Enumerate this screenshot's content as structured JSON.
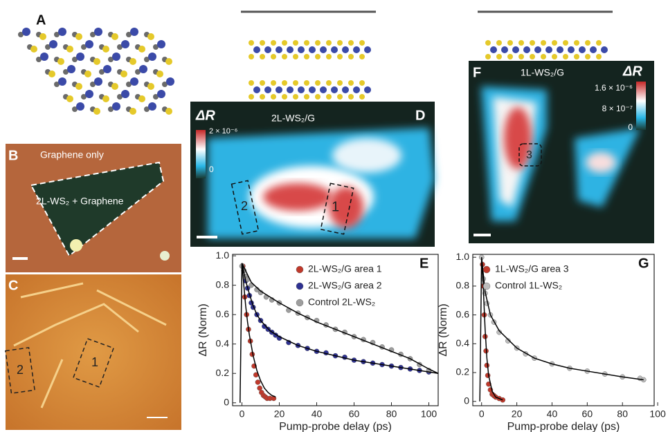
{
  "panels": {
    "letters": [
      "A",
      "B",
      "C",
      "D",
      "E",
      "F",
      "G"
    ],
    "b": {
      "top_label": "Graphene only",
      "region_label": "2L-WS₂ + Graphene"
    },
    "c": {
      "area_labels": [
        "1",
        "2"
      ]
    },
    "d": {
      "title": "2L-WS₂/G",
      "colorbar_title": "ΔR",
      "colorbar_ticks": [
        "2 × 10⁻⁶",
        "0"
      ],
      "area_labels": [
        "1",
        "2"
      ]
    },
    "f": {
      "title": "1L-WS₂/G",
      "colorbar_title": "ΔR",
      "colorbar_ticks": [
        "1.6 × 10⁻⁶",
        "8 × 10⁻⁷",
        "0"
      ],
      "area_labels": [
        "3"
      ]
    }
  },
  "chart_data": [
    {
      "type": "scatter",
      "xlabel": "Pump-probe delay (ps)",
      "ylabel": "ΔR (Norm)",
      "legend": "upper right",
      "xlim": [
        -5,
        105
      ],
      "xticks": [
        0,
        20,
        40,
        60,
        80,
        100
      ],
      "ylim": [
        -0.02,
        1.01
      ],
      "yticks": [
        0,
        0.2,
        0.4,
        0.6,
        0.8,
        {
          "value": 1,
          "label": "1.0"
        }
      ],
      "series": [
        {
          "name": "2L-WS₂/G area 1",
          "color": "#c0392b",
          "x": [
            0.5,
            1.5,
            2.5,
            3.5,
            4.5,
            5.5,
            6.5,
            7.5,
            8.5,
            9.5,
            10.5,
            11.5,
            12.5,
            13.5,
            15,
            17
          ],
          "values": [
            0.93,
            0.72,
            0.6,
            0.5,
            0.42,
            0.33,
            0.25,
            0.19,
            0.14,
            0.1,
            0.07,
            0.05,
            0.04,
            0.03,
            0.03,
            0.03
          ]
        },
        {
          "name": "2L-WS₂/G area 2",
          "color": "#2e3192",
          "x": [
            1,
            2,
            3,
            4,
            5,
            6,
            8,
            10,
            12,
            14,
            16,
            18,
            20,
            25,
            30,
            35,
            40,
            45,
            50,
            55,
            60,
            65,
            70,
            75,
            80,
            85,
            90,
            95,
            100
          ],
          "values": [
            0.9,
            0.83,
            0.78,
            0.73,
            0.68,
            0.65,
            0.6,
            0.56,
            0.52,
            0.5,
            0.48,
            0.46,
            0.44,
            0.41,
            0.39,
            0.37,
            0.35,
            0.34,
            0.32,
            0.31,
            0.29,
            0.28,
            0.27,
            0.26,
            0.25,
            0.24,
            0.23,
            0.22,
            0.21
          ]
        },
        {
          "name": "Control 2L-WS₂",
          "color": "#9e9e9e",
          "x": [
            0,
            1,
            2,
            3,
            5,
            8,
            10,
            13,
            16,
            20,
            25,
            30,
            35,
            40,
            45,
            50,
            55,
            60,
            65,
            70,
            75,
            80,
            85,
            90,
            95,
            100
          ],
          "values": [
            0.93,
            0.9,
            0.86,
            0.84,
            0.8,
            0.77,
            0.75,
            0.72,
            0.7,
            0.68,
            0.63,
            0.61,
            0.58,
            0.56,
            0.53,
            0.5,
            0.48,
            0.45,
            0.43,
            0.41,
            0.38,
            0.36,
            0.33,
            0.3,
            0.26,
            0.22
          ]
        },
        {
          "color": "#000000",
          "style": "line",
          "x": [
            -1,
            0,
            1,
            2,
            3,
            4,
            6,
            8,
            10,
            12,
            14,
            16,
            18
          ],
          "values": [
            0,
            0.95,
            0.8,
            0.66,
            0.55,
            0.46,
            0.32,
            0.22,
            0.15,
            0.1,
            0.07,
            0.05,
            0.04
          ]
        },
        {
          "color": "#000000",
          "style": "line",
          "x": [
            0,
            2,
            4,
            6,
            8,
            10,
            15,
            20,
            30,
            40,
            50,
            60,
            70,
            80,
            90,
            100,
            105
          ],
          "values": [
            0.95,
            0.83,
            0.74,
            0.66,
            0.6,
            0.56,
            0.49,
            0.45,
            0.39,
            0.35,
            0.32,
            0.29,
            0.27,
            0.25,
            0.23,
            0.21,
            0.2
          ]
        },
        {
          "color": "#000000",
          "style": "line",
          "x": [
            0,
            5,
            10,
            20,
            30,
            40,
            50,
            60,
            70,
            80,
            90,
            100,
            105
          ],
          "values": [
            0.95,
            0.82,
            0.76,
            0.68,
            0.61,
            0.55,
            0.5,
            0.45,
            0.4,
            0.35,
            0.3,
            0.23,
            0.2
          ]
        }
      ]
    },
    {
      "type": "scatter",
      "xlabel": "Pump-probe delay (ps)",
      "ylabel": "ΔR (Norm)",
      "legend": "upper left",
      "xlim": [
        -5,
        98
      ],
      "xticks": [
        0,
        20,
        40,
        60,
        80,
        100
      ],
      "ylim": [
        -0.03,
        1.02
      ],
      "yticks": [
        0,
        0.2,
        0.4,
        0.6,
        0.8,
        {
          "value": 1,
          "label": "1.0"
        }
      ],
      "series": [
        {
          "name": "1L-WS₂/G area 3",
          "color": "#c0392b",
          "x": [
            0.5,
            1,
            1.5,
            2,
            2.5,
            3,
            3.5,
            4,
            5,
            6,
            7,
            8,
            10,
            12
          ],
          "values": [
            0.95,
            0.8,
            0.6,
            0.45,
            0.35,
            0.25,
            0.18,
            0.12,
            0.08,
            0.05,
            0.04,
            0.03,
            0.02,
            0.01
          ]
        },
        {
          "name": "Control 1L-WS₂",
          "color": "#bdbdbd",
          "x": [
            0,
            1,
            2,
            3,
            5,
            7,
            10,
            15,
            20,
            25,
            30,
            40,
            50,
            60,
            70,
            80,
            90,
            92
          ],
          "values": [
            1.0,
            0.85,
            0.75,
            0.68,
            0.6,
            0.55,
            0.48,
            0.42,
            0.37,
            0.33,
            0.3,
            0.26,
            0.23,
            0.21,
            0.19,
            0.17,
            0.16,
            0.15
          ]
        },
        {
          "color": "#000000",
          "style": "line",
          "x": [
            -1,
            0,
            1,
            2,
            3,
            4,
            6,
            8,
            12
          ],
          "values": [
            0,
            1.0,
            0.78,
            0.5,
            0.3,
            0.18,
            0.07,
            0.03,
            0.01
          ]
        },
        {
          "color": "#000000",
          "style": "line",
          "x": [
            0,
            2,
            5,
            10,
            20,
            30,
            40,
            50,
            60,
            70,
            80,
            92
          ],
          "values": [
            1.0,
            0.76,
            0.6,
            0.49,
            0.37,
            0.3,
            0.26,
            0.23,
            0.21,
            0.19,
            0.17,
            0.15
          ]
        }
      ]
    }
  ]
}
